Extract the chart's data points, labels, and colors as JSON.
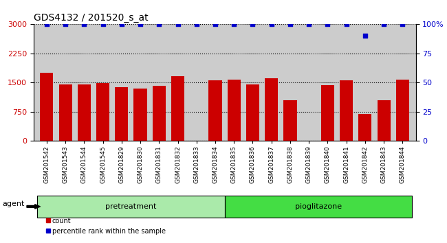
{
  "title": "GDS4132 / 201520_s_at",
  "categories": [
    "GSM201542",
    "GSM201543",
    "GSM201544",
    "GSM201545",
    "GSM201829",
    "GSM201830",
    "GSM201831",
    "GSM201832",
    "GSM201833",
    "GSM201834",
    "GSM201835",
    "GSM201836",
    "GSM201837",
    "GSM201838",
    "GSM201839",
    "GSM201840",
    "GSM201841",
    "GSM201842",
    "GSM201843",
    "GSM201844"
  ],
  "bar_values": [
    1750,
    1450,
    1460,
    1490,
    1380,
    1350,
    1420,
    1670,
    0,
    1560,
    1580,
    1460,
    1620,
    1050,
    0,
    1440,
    1560,
    700,
    1050,
    1570
  ],
  "percentile_values": [
    100,
    100,
    100,
    100,
    100,
    100,
    100,
    100,
    100,
    100,
    100,
    100,
    100,
    100,
    100,
    100,
    100,
    90,
    100,
    100
  ],
  "bar_color": "#cc0000",
  "dot_color": "#0000cc",
  "ylim_left": [
    0,
    3000
  ],
  "ylim_right": [
    0,
    100
  ],
  "yticks_left": [
    0,
    750,
    1500,
    2250,
    3000
  ],
  "yticks_right": [
    0,
    25,
    50,
    75,
    100
  ],
  "ylabel_left_color": "#cc0000",
  "ylabel_right_color": "#0000cc",
  "grid_color": "#000000",
  "pretreatment_label": "pretreatment",
  "pioglitazone_label": "pioglitazone",
  "pretreatment_count": 10,
  "pioglitazone_count": 10,
  "agent_label": "agent",
  "legend_count_label": "count",
  "legend_percentile_label": "percentile rank within the sample",
  "bg_color": "#cccccc",
  "group_bg_pretreatment": "#aaeaaa",
  "group_bg_pioglitazone": "#44dd44",
  "title_fontsize": 10,
  "tick_label_fontsize": 6.5,
  "axis_tick_fontsize": 8
}
